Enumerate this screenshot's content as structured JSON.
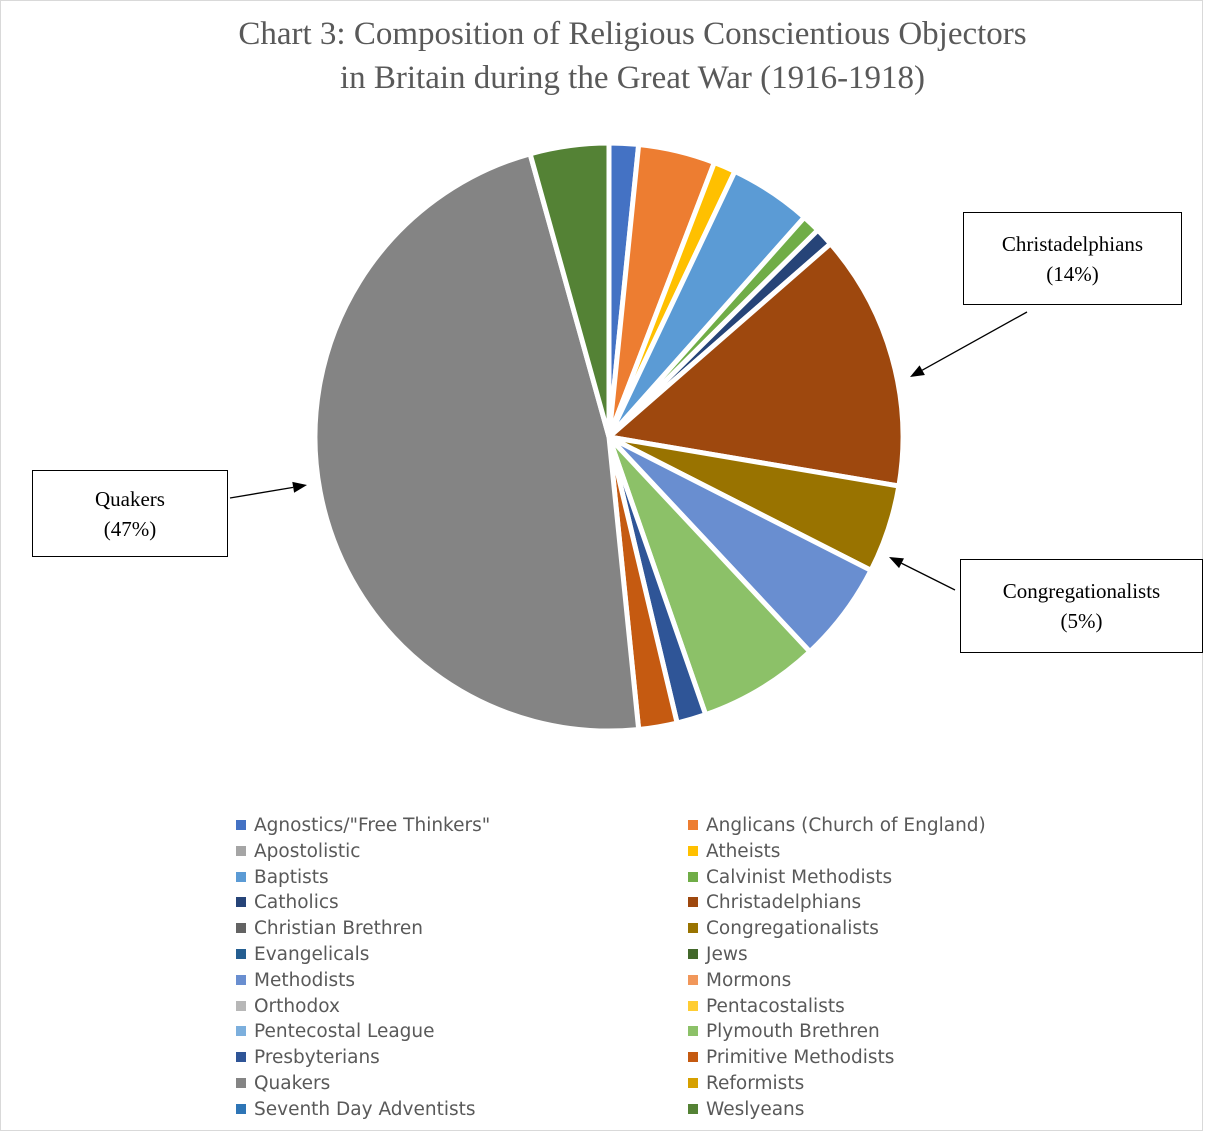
{
  "chart_data": {
    "type": "pie",
    "title": "Chart 3: Composition of Religious Conscientious Objectors in Britain during the Great War (1916-1918)",
    "title_lines": [
      "Chart 3: Composition of Religious Conscientious Objectors",
      "in Britain during the Great War (1916-1918)"
    ],
    "legend_position": "bottom",
    "slices": [
      {
        "label": "Agnostics/\"Free Thinkers\"",
        "value": 1.6,
        "color": "#4472C4"
      },
      {
        "label": "Anglicans (Church of England)",
        "value": 4.2,
        "color": "#ED7D31"
      },
      {
        "label": "Apostolistic",
        "value": 0.0,
        "color": "#A5A5A5"
      },
      {
        "label": "Atheists",
        "value": 1.2,
        "color": "#FFC000"
      },
      {
        "label": "Baptists",
        "value": 4.5,
        "color": "#5B9BD5"
      },
      {
        "label": "Calvinist Methodists",
        "value": 1.0,
        "color": "#70AD47"
      },
      {
        "label": "Catholics",
        "value": 1.0,
        "color": "#264478"
      },
      {
        "label": "Christadelphians",
        "value": 14.0,
        "color": "#9E480E"
      },
      {
        "label": "Christian Brethren",
        "value": 0.0,
        "color": "#636363"
      },
      {
        "label": "Congregationalists",
        "value": 4.8,
        "color": "#997300"
      },
      {
        "label": "Evangelicals",
        "value": 0.0,
        "color": "#255E91"
      },
      {
        "label": "Jews",
        "value": 0.0,
        "color": "#43682B"
      },
      {
        "label": "Methodists",
        "value": 5.5,
        "color": "#698ED0"
      },
      {
        "label": "Mormons",
        "value": 0.0,
        "color": "#F1975A"
      },
      {
        "label": "Orthodox",
        "value": 0.0,
        "color": "#B7B7B7"
      },
      {
        "label": "Pentacostalists",
        "value": 0.0,
        "color": "#FFCD33"
      },
      {
        "label": "Pentecostal League",
        "value": 0.0,
        "color": "#7CAFDD"
      },
      {
        "label": "Plymouth Brethren",
        "value": 6.6,
        "color": "#8CC168"
      },
      {
        "label": "Presbyterians",
        "value": 1.6,
        "color": "#2F5597"
      },
      {
        "label": "Primitive Methodists",
        "value": 2.1,
        "color": "#C55A11"
      },
      {
        "label": "Quakers",
        "value": 47.0,
        "color": "#848484"
      },
      {
        "label": "Reformists",
        "value": 0.0,
        "color": "#D6A000"
      },
      {
        "label": "Seventh Day Adventists",
        "value": 0.0,
        "color": "#2E75B6"
      },
      {
        "label": "Weslyeans",
        "value": 4.3,
        "color": "#548235"
      }
    ],
    "callouts": [
      {
        "name": "Christadelphians",
        "pct": "(14%)"
      },
      {
        "name": "Congregationalists",
        "pct": "(5%)"
      },
      {
        "name": "Quakers",
        "pct": "(47%)"
      }
    ]
  }
}
